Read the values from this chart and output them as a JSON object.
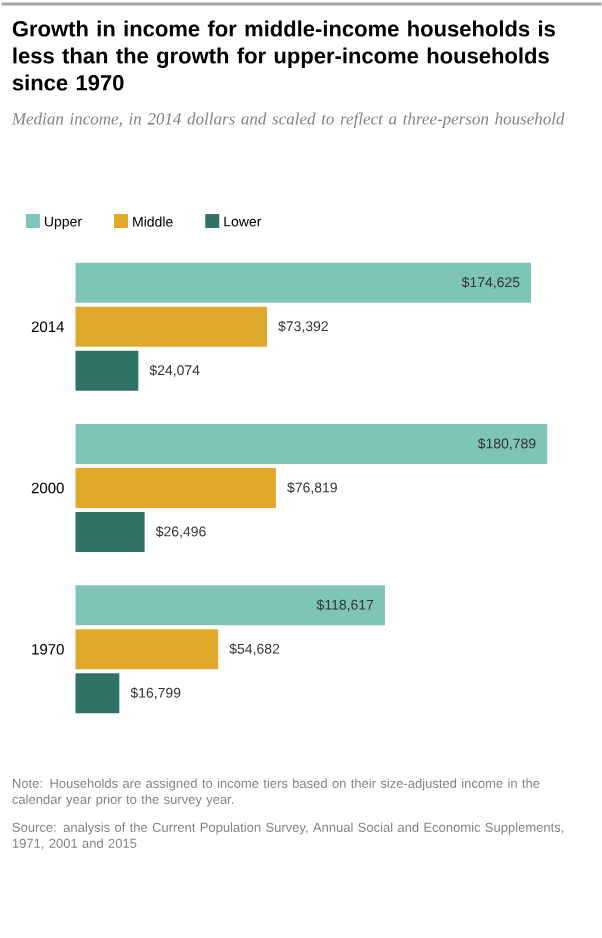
{
  "chart_data": {
    "type": "bar",
    "orientation": "horizontal",
    "title": "Growth in income for middle-income households is less than the growth for upper-income households since 1970",
    "subtitle": "Median income, in 2014 dollars and scaled to reflect a three-person household",
    "categories": [
      "2014",
      "2000",
      "1970"
    ],
    "series": [
      {
        "name": "Upper",
        "color": "#7fc4b8",
        "values": [
          174625,
          180789,
          118617
        ],
        "value_labels": [
          "$174,625",
          "$180,789",
          "$118,617"
        ]
      },
      {
        "name": "Middle",
        "color": "#e0a92a",
        "values": [
          73392,
          76819,
          54682
        ],
        "value_labels": [
          "$73,392",
          "$76,819",
          "$54,682"
        ]
      },
      {
        "name": "Lower",
        "color": "#2e7366",
        "values": [
          24074,
          26496,
          16799
        ],
        "value_labels": [
          "$24,074",
          "$26,496",
          "$16,799"
        ]
      }
    ],
    "legend": "top left",
    "annotations": [
      "Note: Households are assigned to income tiers based on their size-adjusted income in the calendar year prior to the survey year.",
      "Source: analysis of the Current Population Survey, Annual Social and Economic Supplements, 1971, 2001 and 2015"
    ]
  }
}
